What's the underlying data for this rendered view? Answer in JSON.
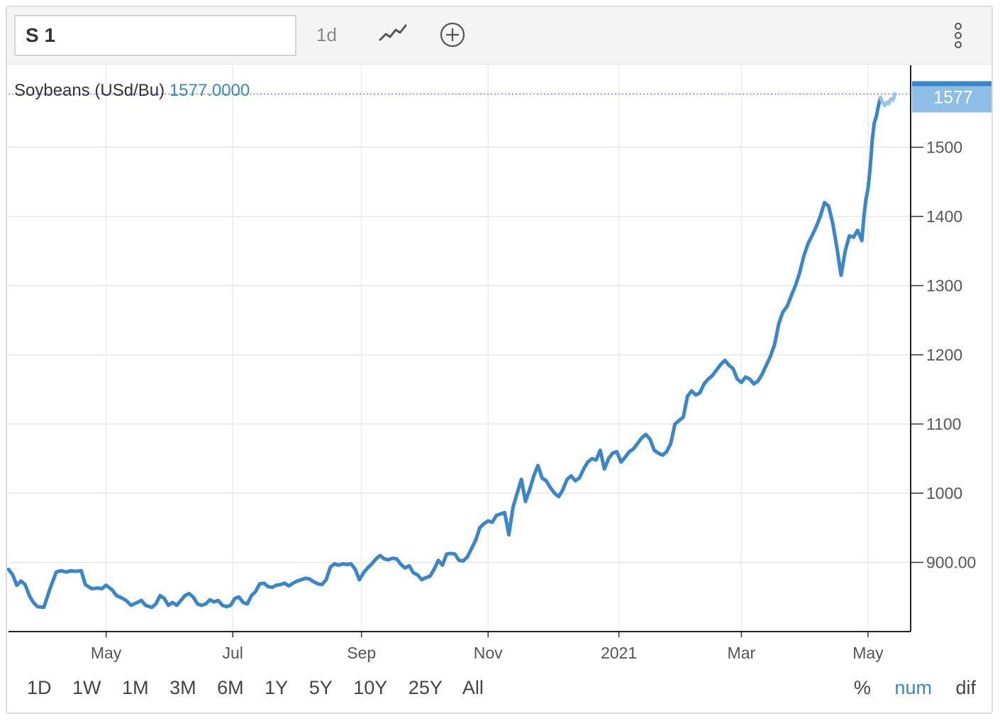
{
  "toolbar": {
    "symbol": "S 1",
    "interval": "1d",
    "chart_type_icon": "line-chart-icon",
    "add_icon": "plus-circle-icon",
    "more_icon": "vertical-dots-icon"
  },
  "legend": {
    "series_label": "Soybeans (USd/Bu)",
    "value_label": "1577.0000"
  },
  "last_price_tag": "1577",
  "ranges": [
    "1D",
    "1W",
    "1M",
    "3M",
    "6M",
    "1Y",
    "5Y",
    "10Y",
    "25Y",
    "All"
  ],
  "modes": {
    "pct": "%",
    "num": "num",
    "dif": "dif",
    "active": "num"
  },
  "colors": {
    "line": "#3a86c8",
    "line_light": "#9dc4e6",
    "tag": "#8ebde6",
    "tag_top": "#3a86c8"
  },
  "chart_data": {
    "type": "line",
    "title": "",
    "xlabel": "",
    "ylabel": "",
    "x_tick_labels": [
      "May",
      "Jul",
      "Sep",
      "Nov",
      "2021",
      "Mar",
      "May"
    ],
    "y_tick_labels": [
      "900.00",
      "1000",
      "1100",
      "1200",
      "1300",
      "1400",
      "1500"
    ],
    "y_ticks": [
      900,
      1000,
      1100,
      1200,
      1300,
      1400,
      1500
    ],
    "ylim": [
      800,
      1600
    ],
    "xlim": [
      0,
      415
    ],
    "x_ticks_days": [
      47,
      108,
      170,
      231,
      294,
      353,
      414
    ],
    "grid": true,
    "series": [
      {
        "name": "Soybeans (USd/Bu)",
        "points": [
          [
            0,
            890
          ],
          [
            2,
            882
          ],
          [
            4,
            867
          ],
          [
            6,
            873
          ],
          [
            8,
            868
          ],
          [
            10,
            852
          ],
          [
            12,
            842
          ],
          [
            14,
            836
          ],
          [
            17,
            835
          ],
          [
            20,
            862
          ],
          [
            23,
            886
          ],
          [
            25,
            888
          ],
          [
            28,
            886
          ],
          [
            30,
            888
          ],
          [
            32,
            887
          ],
          [
            35,
            888
          ],
          [
            37,
            868
          ],
          [
            40,
            862
          ],
          [
            43,
            863
          ],
          [
            45,
            862
          ],
          [
            47,
            867
          ],
          [
            50,
            860
          ],
          [
            52,
            852
          ],
          [
            55,
            848
          ],
          [
            57,
            844
          ],
          [
            59,
            838
          ],
          [
            62,
            842
          ],
          [
            64,
            845
          ],
          [
            66,
            838
          ],
          [
            69,
            835
          ],
          [
            71,
            840
          ],
          [
            73,
            852
          ],
          [
            75,
            848
          ],
          [
            77,
            838
          ],
          [
            79,
            842
          ],
          [
            81,
            838
          ],
          [
            83,
            845
          ],
          [
            85,
            852
          ],
          [
            87,
            855
          ],
          [
            89,
            850
          ],
          [
            91,
            840
          ],
          [
            93,
            838
          ],
          [
            95,
            840
          ],
          [
            97,
            846
          ],
          [
            99,
            843
          ],
          [
            101,
            845
          ],
          [
            103,
            838
          ],
          [
            105,
            836
          ],
          [
            107,
            838
          ],
          [
            109,
            848
          ],
          [
            111,
            850
          ],
          [
            113,
            842
          ],
          [
            115,
            840
          ],
          [
            117,
            852
          ],
          [
            119,
            858
          ],
          [
            121,
            869
          ],
          [
            123,
            870
          ],
          [
            125,
            865
          ],
          [
            127,
            864
          ],
          [
            129,
            867
          ],
          [
            131,
            868
          ],
          [
            133,
            870
          ],
          [
            135,
            866
          ],
          [
            137,
            870
          ],
          [
            139,
            873
          ],
          [
            141,
            875
          ],
          [
            143,
            877
          ],
          [
            145,
            876
          ],
          [
            147,
            872
          ],
          [
            149,
            869
          ],
          [
            151,
            868
          ],
          [
            153,
            875
          ],
          [
            155,
            893
          ],
          [
            157,
            898
          ],
          [
            159,
            896
          ],
          [
            161,
            898
          ],
          [
            163,
            897
          ],
          [
            165,
            898
          ],
          [
            167,
            890
          ],
          [
            169,
            875
          ],
          [
            171,
            885
          ],
          [
            173,
            892
          ],
          [
            175,
            898
          ],
          [
            177,
            905
          ],
          [
            179,
            910
          ],
          [
            181,
            905
          ],
          [
            183,
            904
          ],
          [
            185,
            906
          ],
          [
            187,
            905
          ],
          [
            189,
            897
          ],
          [
            191,
            892
          ],
          [
            193,
            895
          ],
          [
            195,
            885
          ],
          [
            197,
            882
          ],
          [
            199,
            875
          ],
          [
            201,
            878
          ],
          [
            203,
            880
          ],
          [
            205,
            890
          ],
          [
            207,
            903
          ],
          [
            209,
            896
          ],
          [
            211,
            912
          ],
          [
            213,
            913
          ],
          [
            215,
            912
          ],
          [
            217,
            903
          ],
          [
            219,
            902
          ],
          [
            221,
            908
          ],
          [
            223,
            920
          ],
          [
            225,
            932
          ],
          [
            227,
            950
          ],
          [
            229,
            956
          ],
          [
            231,
            960
          ],
          [
            233,
            958
          ],
          [
            235,
            968
          ],
          [
            237,
            970
          ],
          [
            239,
            972
          ],
          [
            241,
            940
          ],
          [
            243,
            980
          ],
          [
            245,
            1000
          ],
          [
            247,
            1020
          ],
          [
            249,
            988
          ],
          [
            251,
            1005
          ],
          [
            253,
            1025
          ],
          [
            255,
            1040
          ],
          [
            257,
            1022
          ],
          [
            259,
            1018
          ],
          [
            261,
            1008
          ],
          [
            263,
            1000
          ],
          [
            265,
            995
          ],
          [
            267,
            1005
          ],
          [
            269,
            1020
          ],
          [
            271,
            1025
          ],
          [
            273,
            1018
          ],
          [
            275,
            1022
          ],
          [
            277,
            1035
          ],
          [
            279,
            1045
          ],
          [
            281,
            1050
          ],
          [
            283,
            1048
          ],
          [
            285,
            1062
          ],
          [
            287,
            1035
          ],
          [
            289,
            1050
          ],
          [
            291,
            1058
          ],
          [
            293,
            1060
          ],
          [
            295,
            1045
          ],
          [
            297,
            1052
          ],
          [
            299,
            1060
          ],
          [
            301,
            1064
          ],
          [
            303,
            1072
          ],
          [
            305,
            1080
          ],
          [
            307,
            1085
          ],
          [
            309,
            1078
          ],
          [
            311,
            1062
          ],
          [
            313,
            1058
          ],
          [
            315,
            1055
          ],
          [
            317,
            1060
          ],
          [
            319,
            1072
          ],
          [
            321,
            1100
          ],
          [
            323,
            1105
          ],
          [
            325,
            1110
          ],
          [
            327,
            1140
          ],
          [
            329,
            1148
          ],
          [
            331,
            1142
          ],
          [
            333,
            1145
          ],
          [
            335,
            1158
          ],
          [
            337,
            1165
          ],
          [
            339,
            1170
          ],
          [
            341,
            1178
          ],
          [
            343,
            1186
          ],
          [
            345,
            1192
          ],
          [
            347,
            1185
          ],
          [
            349,
            1180
          ],
          [
            351,
            1165
          ],
          [
            353,
            1160
          ],
          [
            355,
            1168
          ],
          [
            357,
            1165
          ],
          [
            359,
            1158
          ],
          [
            361,
            1162
          ],
          [
            363,
            1172
          ],
          [
            365,
            1185
          ],
          [
            367,
            1198
          ],
          [
            369,
            1215
          ],
          [
            371,
            1245
          ],
          [
            373,
            1262
          ],
          [
            375,
            1270
          ],
          [
            377,
            1285
          ],
          [
            379,
            1300
          ],
          [
            381,
            1318
          ],
          [
            383,
            1342
          ],
          [
            385,
            1360
          ],
          [
            387,
            1372
          ],
          [
            389,
            1385
          ],
          [
            391,
            1400
          ],
          [
            393,
            1420
          ],
          [
            395,
            1415
          ],
          [
            397,
            1390
          ],
          [
            399,
            1355
          ],
          [
            401,
            1315
          ],
          [
            403,
            1350
          ],
          [
            405,
            1372
          ],
          [
            407,
            1370
          ],
          [
            409,
            1380
          ],
          [
            411,
            1365
          ],
          [
            412,
            1400
          ],
          [
            413,
            1425
          ],
          [
            414,
            1440
          ],
          [
            415,
            1470
          ],
          [
            416,
            1510
          ],
          [
            417,
            1535
          ],
          [
            418,
            1545
          ],
          [
            419,
            1560
          ],
          [
            420,
            1572
          ],
          [
            421,
            1565
          ],
          [
            422,
            1560
          ],
          [
            423,
            1565
          ],
          [
            424,
            1563
          ],
          [
            425,
            1570
          ],
          [
            426,
            1568
          ],
          [
            427,
            1577
          ]
        ]
      }
    ],
    "projected_tail_from_day": 420
  }
}
